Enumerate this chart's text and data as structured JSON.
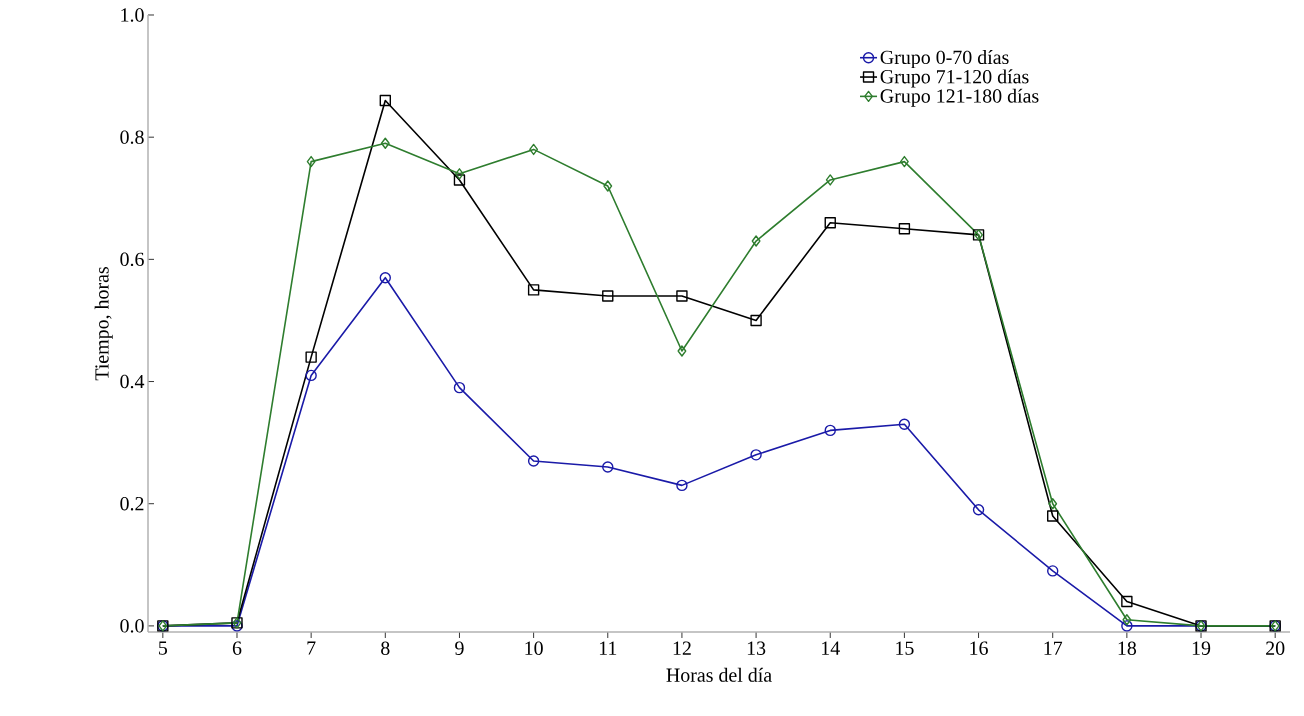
{
  "chart_data": {
    "type": "line",
    "xlabel": "Horas del día",
    "ylabel": "Tiempo, horas",
    "x": [
      5,
      6,
      7,
      8,
      9,
      10,
      11,
      12,
      13,
      14,
      15,
      16,
      17,
      18,
      19,
      20
    ],
    "xlim": [
      4.8,
      20.2
    ],
    "ylim": [
      -0.01,
      1.0
    ],
    "xticks": [
      5,
      6,
      7,
      8,
      9,
      10,
      11,
      12,
      13,
      14,
      15,
      16,
      17,
      18,
      19,
      20
    ],
    "yticks": [
      {
        "value": 0,
        "label": "0.0"
      },
      {
        "value": 0.2,
        "label": "0.2"
      },
      {
        "value": 0.4,
        "label": "0.4"
      },
      {
        "value": 0.6,
        "label": "0.6"
      },
      {
        "value": 0.8,
        "label": "0.8"
      },
      {
        "value": 1.0,
        "label": "1.0"
      }
    ],
    "grid": false,
    "legend": "top right",
    "line_style": "solid",
    "series": [
      {
        "name": "Grupo 0-70 días",
        "color": "#1a1aa8",
        "marker": "circle",
        "values": [
          0,
          0,
          0.41,
          0.57,
          0.39,
          0.27,
          0.26,
          0.23,
          0.28,
          0.32,
          0.33,
          0.19,
          0.09,
          0,
          0,
          0
        ]
      },
      {
        "name": "Grupo 71-120  días",
        "color": "#000000",
        "marker": "square",
        "values": [
          0,
          0.005,
          0.44,
          0.86,
          0.73,
          0.55,
          0.54,
          0.54,
          0.5,
          0.66,
          0.65,
          0.64,
          0.18,
          0.04,
          0,
          0
        ]
      },
      {
        "name": "Grupo 121-180 días",
        "color": "#2e7d2e",
        "marker": "diamond",
        "values": [
          0,
          0.005,
          0.76,
          0.79,
          0.74,
          0.78,
          0.72,
          0.45,
          0.63,
          0.73,
          0.76,
          0.64,
          0.2,
          0.01,
          0,
          0
        ]
      }
    ]
  }
}
